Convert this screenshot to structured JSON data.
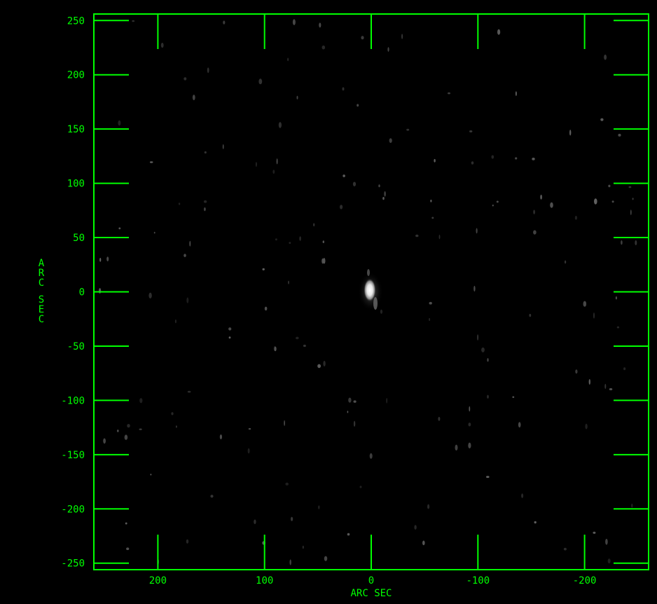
{
  "image": {
    "kind": "grayscale radio/astronomical map",
    "background_color": "#000000",
    "axis_color": "#00ff00",
    "label_color": "#00ff00"
  },
  "chart_data": {
    "type": "heatmap",
    "title": "",
    "xlabel": "ARC SEC",
    "ylabel": "ARC SEC",
    "xlim": [
      260,
      -260
    ],
    "ylim": [
      -256,
      256
    ],
    "x_tick_values": [
      200,
      100,
      0,
      -100,
      -200
    ],
    "x_tick_labels": [
      "200",
      "100",
      "0",
      "-100",
      "-200"
    ],
    "y_tick_values": [
      250,
      200,
      150,
      100,
      50,
      0,
      -50,
      -100,
      -150,
      -200,
      -250
    ],
    "y_tick_labels": [
      "250",
      "200",
      "150",
      "100",
      "50",
      "0",
      "-50",
      "-100",
      "-150",
      "-200",
      "-250"
    ],
    "grid": false,
    "legend": "none",
    "source_peak": {
      "x": 0,
      "y": 0
    }
  }
}
